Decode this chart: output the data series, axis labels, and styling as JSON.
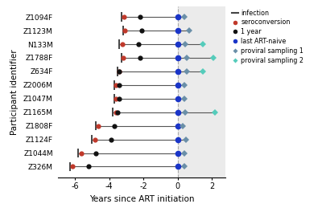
{
  "participants": [
    "Z1094F",
    "Z1123M",
    "N133M",
    "Z1788F",
    "Z634F",
    "Z2006M",
    "Z1047M",
    "Z1165M",
    "Z1808F",
    "Z1124F",
    "Z1044M",
    "Z326M"
  ],
  "infection": [
    -3.3,
    -3.2,
    -3.4,
    -3.3,
    -3.5,
    -3.7,
    -3.7,
    -3.8,
    -4.8,
    -5.0,
    -5.8,
    -6.3
  ],
  "seroconversion": [
    -3.15,
    -3.1,
    -3.25,
    -3.2,
    -3.4,
    -3.6,
    -3.6,
    -3.6,
    -4.65,
    -4.85,
    -5.65,
    -6.15
  ],
  "one_year": [
    -2.2,
    -2.1,
    -2.3,
    -2.2,
    -3.4,
    -3.4,
    -3.4,
    -3.5,
    -3.7,
    -3.9,
    -4.8,
    -5.2
  ],
  "last_art_naive": [
    0.0,
    0.0,
    0.0,
    0.0,
    0.0,
    0.0,
    0.0,
    0.0,
    0.0,
    0.0,
    0.0,
    0.0
  ],
  "proviral1": [
    0.4,
    0.7,
    0.45,
    0.55,
    0.55,
    0.38,
    0.38,
    0.45,
    0.28,
    0.48,
    0.38,
    0.38
  ],
  "proviral2": [
    null,
    null,
    1.5,
    2.1,
    1.5,
    null,
    null,
    2.2,
    null,
    null,
    null,
    null
  ],
  "bg_color": "#ebebeb",
  "line_color": "#555555",
  "infect_color": "#444444",
  "sero_color": "#c0392b",
  "one_year_color": "#111111",
  "blue_color": "#1a35c8",
  "prov1_color": "#6a8fa8",
  "prov2_color": "#55ccbb",
  "ylabel": "Participant identifier",
  "xlabel": "Years since ART initiation",
  "xlim": [
    -7,
    2.8
  ],
  "xticks": [
    -6,
    -4,
    -2,
    0,
    2
  ],
  "legend_labels": [
    "infection",
    "seroconversion",
    "1 year",
    "last ART-naive",
    "proviral sampling 1",
    "proviral sampling 2"
  ]
}
